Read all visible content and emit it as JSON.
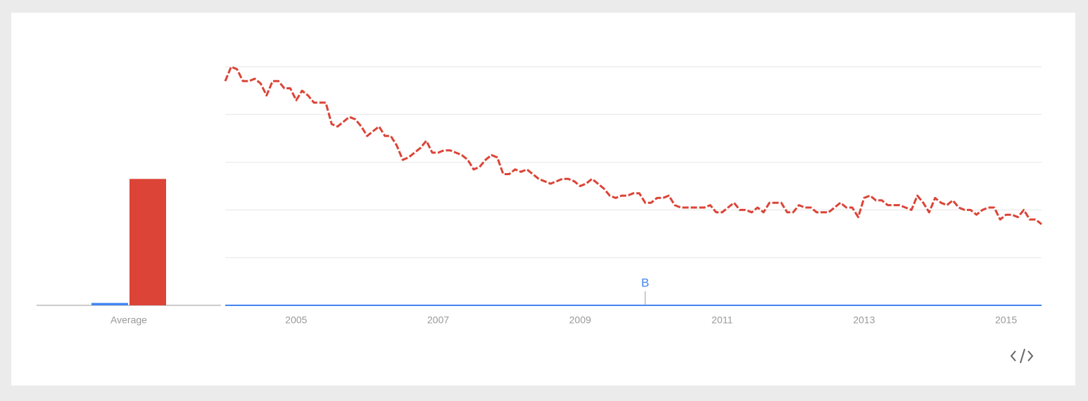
{
  "chart_data": [
    {
      "type": "bar",
      "categories": [
        "Average"
      ],
      "series": [
        {
          "color": "#4285f4",
          "values": [
            1
          ]
        },
        {
          "color": "#db4437",
          "values": [
            53
          ]
        }
      ],
      "ylim": [
        0,
        100
      ]
    },
    {
      "type": "line",
      "x": [
        2004.0,
        2004.083,
        2004.167,
        2004.25,
        2004.333,
        2004.417,
        2004.5,
        2004.583,
        2004.667,
        2004.75,
        2004.833,
        2004.917,
        2005.0,
        2005.083,
        2005.167,
        2005.25,
        2005.333,
        2005.417,
        2005.5,
        2005.583,
        2005.667,
        2005.75,
        2005.833,
        2005.917,
        2006.0,
        2006.083,
        2006.167,
        2006.25,
        2006.333,
        2006.417,
        2006.5,
        2006.583,
        2006.667,
        2006.75,
        2006.833,
        2006.917,
        2007.0,
        2007.083,
        2007.167,
        2007.25,
        2007.333,
        2007.417,
        2007.5,
        2007.583,
        2007.667,
        2007.75,
        2007.833,
        2007.917,
        2008.0,
        2008.083,
        2008.167,
        2008.25,
        2008.333,
        2008.417,
        2008.5,
        2008.583,
        2008.667,
        2008.75,
        2008.833,
        2008.917,
        2009.0,
        2009.083,
        2009.167,
        2009.25,
        2009.333,
        2009.417,
        2009.5,
        2009.583,
        2009.667,
        2009.75,
        2009.833,
        2009.917,
        2010.0,
        2010.083,
        2010.167,
        2010.25,
        2010.333,
        2010.417,
        2010.5,
        2010.583,
        2010.667,
        2010.75,
        2010.833,
        2010.917,
        2011.0,
        2011.083,
        2011.167,
        2011.25,
        2011.333,
        2011.417,
        2011.5,
        2011.583,
        2011.667,
        2011.75,
        2011.833,
        2011.917,
        2012.0,
        2012.083,
        2012.167,
        2012.25,
        2012.333,
        2012.417,
        2012.5,
        2012.583,
        2012.667,
        2012.75,
        2012.833,
        2012.917,
        2013.0,
        2013.083,
        2013.167,
        2013.25,
        2013.333,
        2013.417,
        2013.5,
        2013.583,
        2013.667,
        2013.75,
        2013.833,
        2013.917,
        2014.0,
        2014.083,
        2014.167,
        2014.25,
        2014.333,
        2014.417,
        2014.5,
        2014.583,
        2014.667,
        2014.75,
        2014.833,
        2014.917,
        2015.0,
        2015.083,
        2015.167,
        2015.25,
        2015.333,
        2015.417,
        2015.5
      ],
      "series": [
        {
          "color": "#4285f4",
          "values": [
            0,
            0,
            0,
            0,
            0,
            0,
            0,
            0,
            0,
            0,
            0,
            0,
            0,
            0,
            0,
            0,
            0,
            0,
            0,
            0,
            0,
            0,
            0,
            0,
            0,
            0,
            0,
            0,
            0,
            0,
            0,
            0,
            0,
            0,
            0,
            0,
            0,
            0,
            0,
            0,
            0,
            0,
            0,
            0,
            0,
            0,
            0,
            0,
            0,
            0,
            0,
            0,
            0,
            0,
            0,
            0,
            0,
            0,
            0,
            0,
            0,
            0,
            0,
            0,
            0,
            0,
            0,
            0,
            0,
            0,
            0,
            0,
            0,
            0,
            0,
            0,
            0,
            0,
            0,
            0,
            0,
            0,
            0,
            0,
            0,
            0,
            0,
            0,
            0,
            0,
            0,
            0,
            0,
            0,
            0,
            0,
            0,
            0,
            0,
            0,
            0,
            0,
            0,
            0,
            0,
            0,
            0,
            0,
            0,
            0,
            0,
            0,
            0,
            0,
            0,
            0,
            0,
            0,
            0,
            0,
            0,
            0,
            0,
            0,
            0,
            0,
            0,
            0,
            0,
            0,
            0,
            0,
            0,
            0,
            0,
            0,
            0,
            0,
            0
          ]
        },
        {
          "color": "#db4437",
          "dashed": true,
          "values": [
            94,
            100,
            99,
            94,
            94,
            95,
            93,
            88,
            94,
            94,
            91,
            91,
            86,
            90,
            88,
            85,
            85,
            85,
            76,
            75,
            77,
            79,
            78,
            75,
            71,
            73,
            75,
            71,
            71,
            67,
            61,
            62,
            64,
            66,
            69,
            64,
            64,
            65,
            65,
            64,
            63,
            61,
            57,
            58,
            61,
            63,
            62,
            55,
            55,
            57,
            56,
            57,
            55,
            53,
            52,
            51,
            52,
            53,
            53,
            52,
            50,
            51,
            53,
            51,
            49,
            46,
            45,
            46,
            46,
            47,
            47,
            43,
            43,
            45,
            45,
            46,
            42,
            41,
            41,
            41,
            41,
            41,
            42,
            39,
            39,
            41,
            43,
            40,
            40,
            39,
            41,
            39,
            43,
            43,
            43,
            39,
            39,
            42,
            41,
            41,
            39,
            39,
            39,
            41,
            43,
            41,
            41,
            37,
            45,
            46,
            44,
            44,
            42,
            42,
            42,
            41,
            40,
            46,
            43,
            39,
            45,
            43,
            42,
            44,
            41,
            40,
            40,
            38,
            40,
            41,
            41,
            36,
            38,
            38,
            37,
            40,
            36,
            36,
            34
          ]
        }
      ],
      "xlim": [
        2004.0,
        2015.5
      ],
      "xticks": [
        2005,
        2007,
        2009,
        2011,
        2013,
        2015
      ],
      "ylim": [
        0,
        100
      ],
      "yticks": [
        0,
        20,
        40,
        60,
        80,
        100
      ],
      "grid": true,
      "annotations": [
        {
          "x": 2009.917,
          "label": "B"
        }
      ]
    }
  ]
}
